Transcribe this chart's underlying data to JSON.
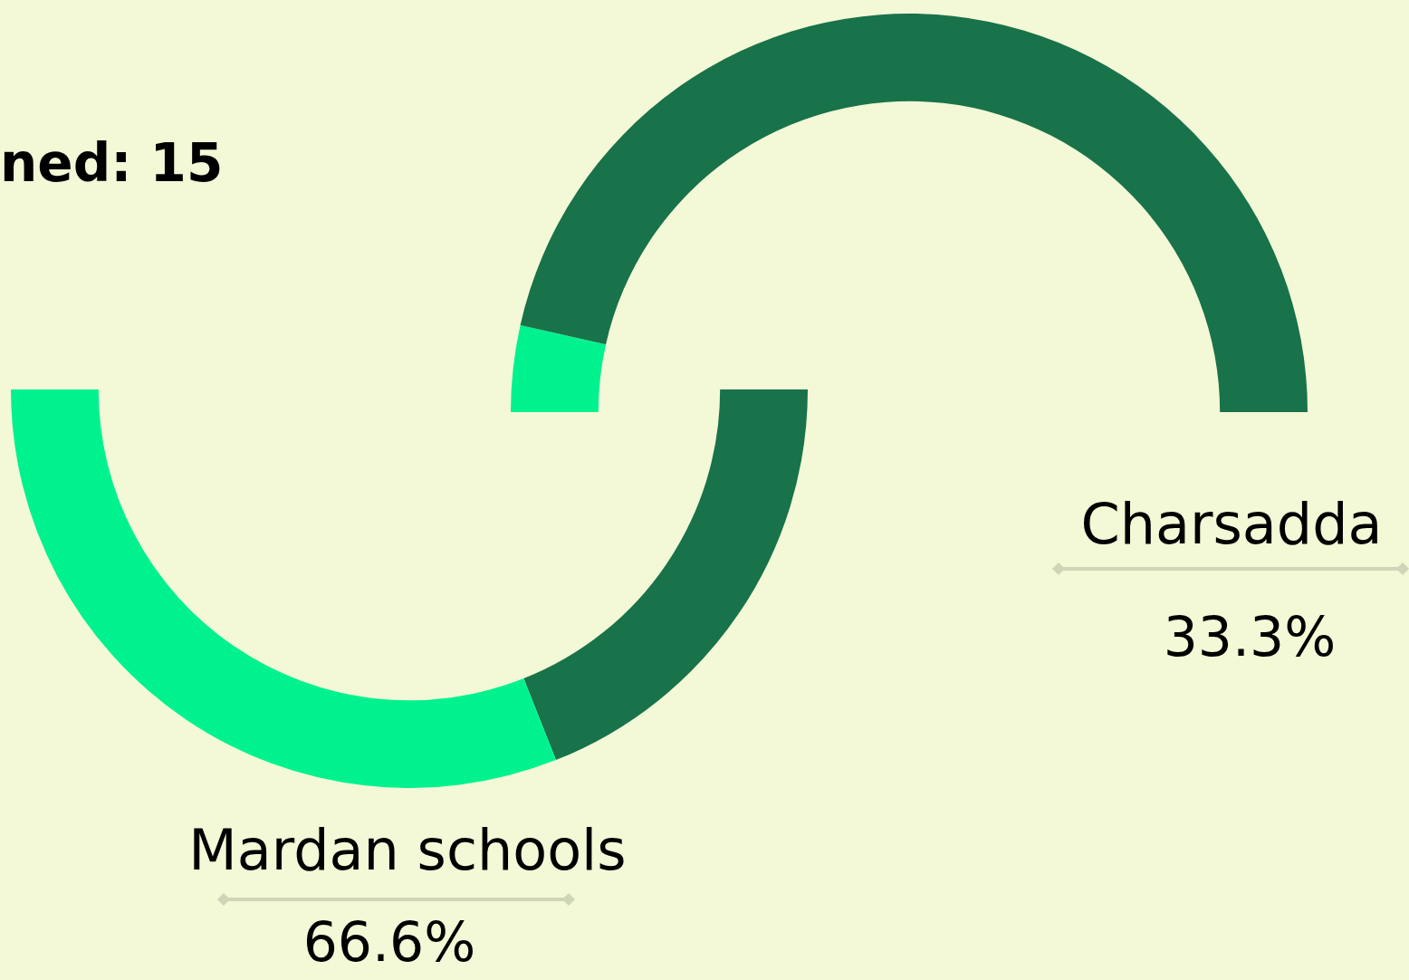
{
  "chart_data": [
    {
      "type": "donut",
      "title": "Mardan schools",
      "categories": [
        null,
        null
      ],
      "values": [
        38,
        62
      ],
      "colors": [
        "#18724a",
        "#00f28f"
      ],
      "annotations": [
        "ned: 15",
        "66.6%"
      ]
    },
    {
      "type": "donut",
      "title": "Charsadda",
      "categories": [
        null,
        null
      ],
      "values": [
        7,
        93
      ],
      "colors": [
        "#00f28f",
        "#18724a"
      ],
      "annotations": [
        "33.3%"
      ]
    }
  ]
}
